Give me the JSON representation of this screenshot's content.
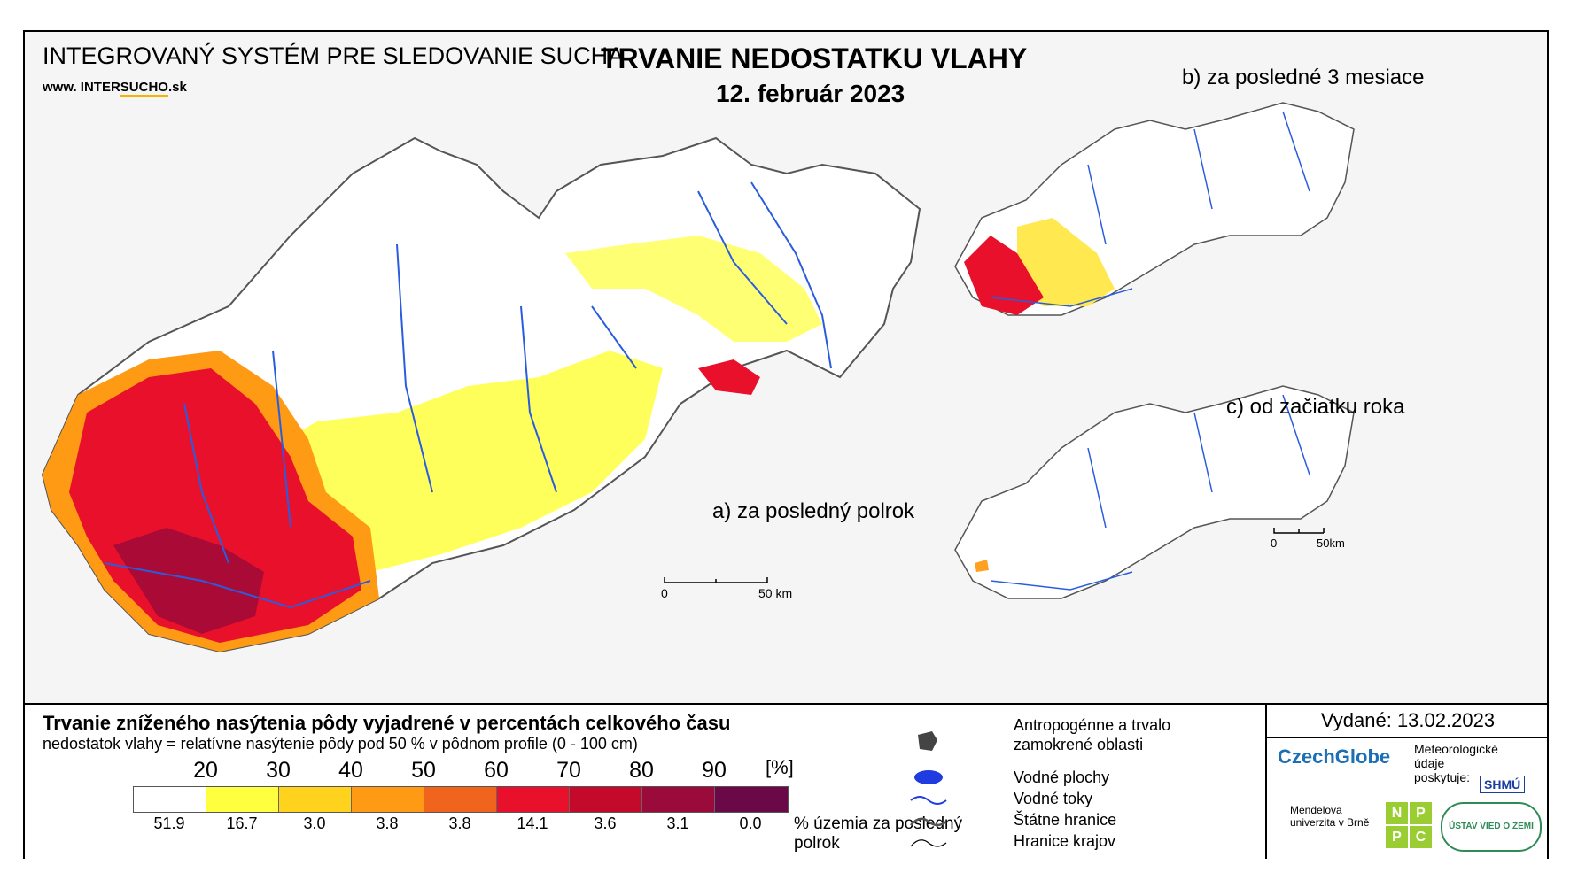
{
  "header": {
    "system_title": "INTEGROVANÝ SYSTÉM PRE SLEDOVANIE SUCHA",
    "website_prefix": "www. INTER",
    "website_highlight": "SUCHO",
    "website_suffix": ".sk",
    "main_title": "TRVANIE NEDOSTATKU VLAHY",
    "date": "12. február 2023"
  },
  "maps": {
    "a_label": "a) za posledný polrok",
    "b_label": "b) za posledné 3 mesiace",
    "c_label": "c) od začiatku roka",
    "scale_a": {
      "zero": "0",
      "end": "50 km"
    },
    "scale_c": {
      "zero": "0",
      "end": "50km"
    }
  },
  "legend": {
    "title": "Trvanie zníženého nasýtenia pôdy vyjadrené v percentách celkového času",
    "subtitle": "nedostatok vlahy = relatívne nasýtenie pôdy pod 50 % v pôdnom profile (0 - 100 cm)",
    "unit": "[%]",
    "ticks": [
      "20",
      "30",
      "40",
      "50",
      "60",
      "70",
      "80",
      "90"
    ],
    "colors": [
      "#ffffff",
      "#ffff40",
      "#ffd21e",
      "#ff9a14",
      "#f0641e",
      "#e8102a",
      "#c40a2a",
      "#9a0a3a",
      "#6a0848"
    ],
    "percentages": [
      "51.9",
      "16.7",
      "3.0",
      "3.8",
      "3.8",
      "14.1",
      "3.6",
      "3.1",
      "0.0"
    ],
    "percent_caption": "% územia za posledný polrok"
  },
  "map_legend": {
    "anthropogenic": "Antropogénne a trvalo zamokrené oblasti",
    "water_bodies": "Vodné plochy",
    "water_courses": "Vodné toky",
    "state_border": "Štátne hranice",
    "region_border": "Hranice krajov"
  },
  "credits": {
    "issued": "Vydané: 13.02.2023",
    "czechglobe": "CzechGlobe",
    "meteo": "Meteorologické údaje poskytuje:",
    "shmu": "SHMÚ",
    "mendel": "Mendelova univerzita v Brně",
    "nppc": [
      "N",
      "P",
      "P",
      "C"
    ],
    "uvz": "ÚSTAV VIED O ZEMI"
  }
}
